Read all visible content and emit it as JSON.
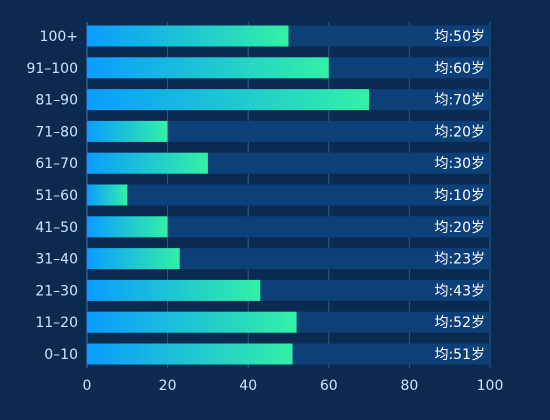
{
  "chart_data": {
    "type": "bar",
    "orientation": "horizontal",
    "categories": [
      "100+",
      "91–100",
      "81–90",
      "71–80",
      "61–70",
      "51–60",
      "41–50",
      "31–40",
      "21–30",
      "11–20",
      "0–10"
    ],
    "values": [
      50,
      60,
      70,
      20,
      30,
      10,
      20,
      23,
      43,
      52,
      51
    ],
    "value_labels": [
      "均:50岁",
      "均:60岁",
      "均:70岁",
      "均:20岁",
      "均:30岁",
      "均:10岁",
      "均:20岁",
      "均:23岁",
      "均:43岁",
      "均:52岁",
      "均:51岁"
    ],
    "xlim": [
      0,
      100
    ],
    "xticks": [
      "0",
      "20",
      "40",
      "60",
      "80",
      "100"
    ],
    "grid": true,
    "colors": {
      "background": "#0b2a4f",
      "track": "#0d3f78",
      "bar_start": "#0a9cff",
      "bar_end": "#33f0a6",
      "grid": "#2a5a8a",
      "text": "#cfe3ff"
    }
  }
}
